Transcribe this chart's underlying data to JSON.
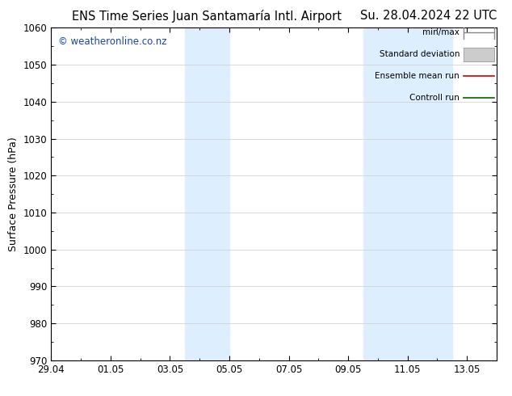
{
  "title_left": "ENS Time Series Juan Santamaría Intl. Airport",
  "title_right": "Su. 28.04.2024 22 UTC",
  "ylabel": "Surface Pressure (hPa)",
  "watermark": "© weatheronline.co.nz",
  "ylim": [
    970,
    1060
  ],
  "yticks": [
    970,
    980,
    990,
    1000,
    1010,
    1020,
    1030,
    1040,
    1050,
    1060
  ],
  "xtick_labels": [
    "29.04",
    "01.05",
    "03.05",
    "05.05",
    "07.05",
    "09.05",
    "11.05",
    "13.05"
  ],
  "xtick_positions": [
    0,
    2,
    4,
    6,
    8,
    10,
    12,
    14
  ],
  "xlim": [
    0,
    15
  ],
  "shaded_regions": [
    {
      "start": 4.5,
      "end": 6.0,
      "color": "#ddeeff"
    },
    {
      "start": 10.5,
      "end": 12.0,
      "color": "#ddeeff"
    },
    {
      "start": 12.0,
      "end": 13.5,
      "color": "#ddeeff"
    }
  ],
  "background_color": "#ffffff",
  "plot_bg_color": "#ffffff",
  "legend_items": [
    {
      "label": "min/max",
      "color": "#aaaaaa",
      "style": "minmax"
    },
    {
      "label": "Standard deviation",
      "color": "#cccccc",
      "style": "box"
    },
    {
      "label": "Ensemble mean run",
      "color": "#cc0000",
      "style": "line"
    },
    {
      "label": "Controll run",
      "color": "#006600",
      "style": "line"
    }
  ],
  "title_fontsize": 10.5,
  "axis_label_fontsize": 9,
  "tick_fontsize": 8.5,
  "legend_fontsize": 7.5,
  "watermark_fontsize": 8.5,
  "watermark_color": "#1a44aa"
}
